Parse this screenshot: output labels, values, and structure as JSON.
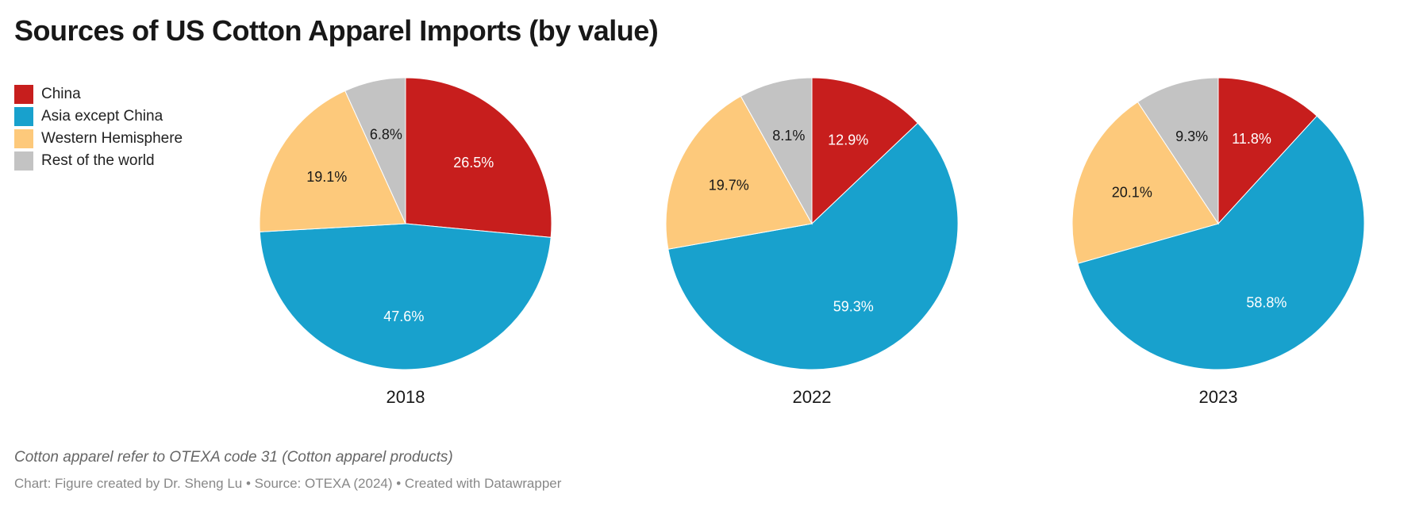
{
  "title": "Sources of US Cotton Apparel Imports (by value)",
  "legend": [
    {
      "label": "China",
      "color": "#c71e1d"
    },
    {
      "label": "Asia except China",
      "color": "#18a1cd"
    },
    {
      "label": "Western Hemisphere",
      "color": "#fdc97b"
    },
    {
      "label": "Rest of the world",
      "color": "#c3c3c3"
    }
  ],
  "footnote": "Cotton apparel refer to OTEXA code 31 (Cotton apparel products)",
  "credits": "Chart: Figure created by Dr. Sheng Lu • Source: OTEXA (2024) • Created with Datawrapper",
  "chart_data": [
    {
      "type": "pie",
      "title": "2018",
      "categories": [
        "China",
        "Asia except China",
        "Western Hemisphere",
        "Rest of the world"
      ],
      "values": [
        26.5,
        47.6,
        19.1,
        6.8
      ],
      "labels": [
        "26.5%",
        "47.6%",
        "19.1%",
        "6.8%"
      ]
    },
    {
      "type": "pie",
      "title": "2022",
      "categories": [
        "China",
        "Asia except China",
        "Western Hemisphere",
        "Rest of the world"
      ],
      "values": [
        12.9,
        59.3,
        19.7,
        8.1
      ],
      "labels": [
        "12.9%",
        "59.3%",
        "19.7%",
        "8.1%"
      ]
    },
    {
      "type": "pie",
      "title": "2023",
      "categories": [
        "China",
        "Asia except China",
        "Western Hemisphere",
        "Rest of the world"
      ],
      "values": [
        11.8,
        58.8,
        20.1,
        9.3
      ],
      "labels": [
        "11.8%",
        "58.8%",
        "20.1%",
        "9.3%"
      ]
    }
  ]
}
